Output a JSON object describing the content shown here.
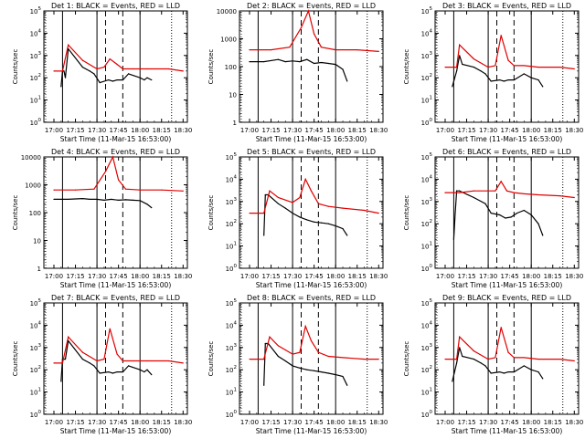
{
  "colors": {
    "events": "#000000",
    "lld": "#e00000",
    "axes": "#000000"
  },
  "chart_data": [
    {
      "type": "line",
      "title": "Det 1: BLACK = Events, RED = LLD",
      "xlabel": "Start Time (11-Mar-15 16:53:00)",
      "ylabel": "Counts/sec",
      "y_tick_labels": [
        "10^0",
        "10^1",
        "10^2",
        "10^3",
        "10^4",
        "10^5"
      ],
      "ylim": [
        1,
        100000
      ],
      "x_tick_labels": [
        "17:00",
        "17:15",
        "17:30",
        "17:45",
        "18:00",
        "18:15",
        "18:30"
      ],
      "series": [
        {
          "name": "Events",
          "x": [
            "17:05",
            "17:06",
            "17:07",
            "17:08",
            "17:10",
            "17:20",
            "17:25",
            "17:28",
            "17:32",
            "17:38",
            "17:41",
            "17:44",
            "17:48",
            "17:52",
            "18:00",
            "18:03",
            "18:05",
            "18:08"
          ],
          "y": [
            40,
            200,
            200,
            100,
            2000,
            300,
            200,
            150,
            60,
            80,
            70,
            80,
            80,
            150,
            100,
            80,
            100,
            80
          ]
        },
        {
          "name": "LLD",
          "x": [
            "17:00",
            "17:06",
            "17:10",
            "17:20",
            "17:30",
            "17:35",
            "17:39",
            "17:44",
            "17:48",
            "17:55",
            "18:05",
            "18:20",
            "18:30"
          ],
          "y": [
            200,
            200,
            3000,
            600,
            250,
            300,
            700,
            400,
            250,
            250,
            250,
            250,
            200
          ]
        }
      ]
    },
    {
      "type": "line",
      "title": "Det 2: BLACK = Events, RED = LLD",
      "xlabel": "Start Time (11-Mar-15 16:53:00)",
      "ylabel": "Counts/sec",
      "y_tick_labels": [
        "1",
        "10",
        "100",
        "1000",
        "10000"
      ],
      "ylim": [
        1,
        10000
      ],
      "x_tick_labels": [
        "17:00",
        "17:15",
        "17:30",
        "17:45",
        "18:00",
        "18:15",
        "18:30"
      ],
      "series": [
        {
          "name": "Events",
          "x": [
            "17:00",
            "17:10",
            "17:20",
            "17:25",
            "17:30",
            "17:35",
            "17:40",
            "17:45",
            "17:50",
            "17:55",
            "18:00",
            "18:05",
            "18:08"
          ],
          "y": [
            150,
            150,
            180,
            150,
            160,
            150,
            180,
            130,
            140,
            130,
            120,
            80,
            30
          ]
        },
        {
          "name": "LLD",
          "x": [
            "17:00",
            "17:15",
            "17:28",
            "17:36",
            "17:41",
            "17:45",
            "17:50",
            "18:00",
            "18:15",
            "18:30"
          ],
          "y": [
            400,
            400,
            500,
            2500,
            10000,
            1500,
            500,
            400,
            400,
            350
          ]
        }
      ]
    },
    {
      "type": "line",
      "title": "Det 3: BLACK = Events, RED = LLD",
      "xlabel": "Start Time (11-Mar-15 16:53:00)",
      "ylabel": "Counts/sec",
      "y_tick_labels": [
        "10^0",
        "10^1",
        "10^2",
        "10^3",
        "10^4",
        "10^5"
      ],
      "ylim": [
        1,
        100000
      ],
      "x_tick_labels": [
        "17:00",
        "17:15",
        "17:30",
        "17:45",
        "18:00",
        "18:15",
        "18:30"
      ],
      "series": [
        {
          "name": "Events",
          "x": [
            "17:05",
            "17:08",
            "17:10",
            "17:12",
            "17:20",
            "17:25",
            "17:28",
            "17:32",
            "17:38",
            "17:41",
            "17:44",
            "17:48",
            "17:55",
            "18:00",
            "18:05",
            "18:08"
          ],
          "y": [
            40,
            200,
            1000,
            400,
            300,
            200,
            150,
            70,
            80,
            70,
            80,
            80,
            150,
            100,
            80,
            40
          ]
        },
        {
          "name": "LLD",
          "x": [
            "17:00",
            "17:08",
            "17:10",
            "17:20",
            "17:30",
            "17:35",
            "17:39",
            "17:44",
            "17:48",
            "17:55",
            "18:05",
            "18:20",
            "18:30"
          ],
          "y": [
            300,
            300,
            3000,
            700,
            300,
            350,
            8000,
            600,
            350,
            350,
            300,
            300,
            250
          ]
        }
      ]
    },
    {
      "type": "line",
      "title": "Det 4: BLACK = Events, RED = LLD",
      "xlabel": "Start Time (11-Mar-15 16:53:00)",
      "ylabel": "Counts/sec",
      "y_tick_labels": [
        "1",
        "10",
        "100",
        "1000",
        "10000"
      ],
      "ylim": [
        1,
        10000
      ],
      "x_tick_labels": [
        "17:00",
        "17:15",
        "17:30",
        "17:45",
        "18:00",
        "18:15",
        "18:30"
      ],
      "series": [
        {
          "name": "Events",
          "x": [
            "17:00",
            "17:10",
            "17:20",
            "17:25",
            "17:30",
            "17:35",
            "17:40",
            "17:45",
            "17:50",
            "17:55",
            "18:00",
            "18:05",
            "18:08"
          ],
          "y": [
            300,
            300,
            320,
            300,
            300,
            280,
            300,
            280,
            290,
            280,
            270,
            200,
            150
          ]
        },
        {
          "name": "LLD",
          "x": [
            "17:00",
            "17:15",
            "17:28",
            "17:36",
            "17:41",
            "17:45",
            "17:50",
            "18:00",
            "18:15",
            "18:30"
          ],
          "y": [
            650,
            650,
            700,
            3000,
            10000,
            1500,
            700,
            650,
            650,
            600
          ]
        }
      ]
    },
    {
      "type": "line",
      "title": "Det 5: BLACK = Events, RED = LLD",
      "xlabel": "Start Time (11-Mar-15 16:53:00)",
      "ylabel": "Counts/sec",
      "y_tick_labels": [
        "10^0",
        "10^1",
        "10^2",
        "10^3",
        "10^4",
        "10^5"
      ],
      "ylim": [
        1,
        100000
      ],
      "x_tick_labels": [
        "17:00",
        "17:15",
        "17:30",
        "17:45",
        "18:00",
        "18:15",
        "18:30"
      ],
      "series": [
        {
          "name": "Events",
          "x": [
            "17:10",
            "17:11",
            "17:13",
            "17:20",
            "17:25",
            "17:30",
            "17:35",
            "17:40",
            "17:45",
            "17:50",
            "17:55",
            "18:00",
            "18:05",
            "18:08"
          ],
          "y": [
            30,
            2000,
            2000,
            800,
            500,
            300,
            200,
            150,
            120,
            110,
            100,
            80,
            60,
            30
          ]
        },
        {
          "name": "LLD",
          "x": [
            "17:00",
            "17:10",
            "17:14",
            "17:20",
            "17:30",
            "17:35",
            "17:39",
            "17:43",
            "17:48",
            "17:55",
            "18:05",
            "18:20",
            "18:30"
          ],
          "y": [
            300,
            300,
            3000,
            1500,
            900,
            1500,
            10000,
            3000,
            800,
            600,
            500,
            400,
            300
          ]
        }
      ]
    },
    {
      "type": "line",
      "title": "Det 6: BLACK = Events, RED = LLD",
      "xlabel": "Start Time (11-Mar-15 16:53:00)",
      "ylabel": "Counts/sec",
      "y_tick_labels": [
        "10^0",
        "10^1",
        "10^2",
        "10^3",
        "10^4",
        "10^5"
      ],
      "ylim": [
        1,
        100000
      ],
      "x_tick_labels": [
        "17:00",
        "17:15",
        "17:30",
        "17:45",
        "18:00",
        "18:15",
        "18:30"
      ],
      "series": [
        {
          "name": "Events",
          "x": [
            "17:06",
            "17:07",
            "17:08",
            "17:10",
            "17:20",
            "17:28",
            "17:32",
            "17:38",
            "17:42",
            "17:46",
            "17:50",
            "17:55",
            "18:00",
            "18:05",
            "18:08"
          ],
          "y": [
            20,
            300,
            3000,
            3000,
            1500,
            800,
            300,
            250,
            180,
            200,
            300,
            400,
            250,
            100,
            30
          ]
        },
        {
          "name": "LLD",
          "x": [
            "17:00",
            "17:10",
            "17:20",
            "17:30",
            "17:35",
            "17:39",
            "17:43",
            "17:48",
            "17:55",
            "18:05",
            "18:20",
            "18:30"
          ],
          "y": [
            2500,
            2500,
            3000,
            3000,
            3000,
            8000,
            3000,
            2500,
            2200,
            2000,
            1800,
            1500
          ]
        }
      ]
    },
    {
      "type": "line",
      "title": "Det 7: BLACK = Events, RED = LLD",
      "xlabel": "Start Time (11-Mar-15 16:53:00)",
      "ylabel": "Counts/sec",
      "y_tick_labels": [
        "10^0",
        "10^1",
        "10^2",
        "10^3",
        "10^4",
        "10^5"
      ],
      "ylim": [
        1,
        100000
      ],
      "x_tick_labels": [
        "17:00",
        "17:15",
        "17:30",
        "17:45",
        "18:00",
        "18:15",
        "18:30"
      ],
      "series": [
        {
          "name": "Events",
          "x": [
            "17:05",
            "17:06",
            "17:08",
            "17:10",
            "17:20",
            "17:25",
            "17:28",
            "17:32",
            "17:38",
            "17:41",
            "17:44",
            "17:48",
            "17:52",
            "18:00",
            "18:03",
            "18:05",
            "18:08"
          ],
          "y": [
            30,
            300,
            300,
            2000,
            300,
            200,
            150,
            70,
            80,
            70,
            80,
            80,
            150,
            100,
            80,
            100,
            60
          ]
        },
        {
          "name": "LLD",
          "x": [
            "17:00",
            "17:06",
            "17:10",
            "17:20",
            "17:30",
            "17:35",
            "17:39",
            "17:44",
            "17:48",
            "17:55",
            "18:05",
            "18:20",
            "18:30"
          ],
          "y": [
            200,
            200,
            3000,
            600,
            250,
            300,
            7000,
            500,
            250,
            250,
            250,
            250,
            200
          ]
        }
      ]
    },
    {
      "type": "line",
      "title": "Det 8: BLACK = Events, RED = LLD",
      "xlabel": "Start Time (11-Mar-15 16:53:00)",
      "ylabel": "Counts/sec",
      "y_tick_labels": [
        "10^0",
        "10^1",
        "10^2",
        "10^3",
        "10^4",
        "10^5"
      ],
      "ylim": [
        1,
        100000
      ],
      "x_tick_labels": [
        "17:00",
        "17:15",
        "17:30",
        "17:45",
        "18:00",
        "18:15",
        "18:30"
      ],
      "series": [
        {
          "name": "Events",
          "x": [
            "17:10",
            "17:11",
            "17:13",
            "17:20",
            "17:25",
            "17:30",
            "17:35",
            "17:40",
            "17:45",
            "17:50",
            "17:55",
            "18:00",
            "18:05",
            "18:08"
          ],
          "y": [
            20,
            1500,
            1500,
            400,
            250,
            150,
            120,
            100,
            90,
            80,
            70,
            60,
            50,
            20
          ]
        },
        {
          "name": "LLD",
          "x": [
            "17:00",
            "17:10",
            "17:14",
            "17:20",
            "17:30",
            "17:35",
            "17:39",
            "17:43",
            "17:48",
            "17:55",
            "18:05",
            "18:20",
            "18:30"
          ],
          "y": [
            300,
            300,
            3000,
            1200,
            500,
            600,
            9000,
            2000,
            600,
            400,
            350,
            300,
            300
          ]
        }
      ]
    },
    {
      "type": "line",
      "title": "Det 9: BLACK = Events, RED = LLD",
      "xlabel": "Start Time (11-Mar-15 16:53:00)",
      "ylabel": "Counts/sec",
      "y_tick_labels": [
        "10^0",
        "10^1",
        "10^2",
        "10^3",
        "10^4",
        "10^5"
      ],
      "ylim": [
        1,
        100000
      ],
      "x_tick_labels": [
        "17:00",
        "17:15",
        "17:30",
        "17:45",
        "18:00",
        "18:15",
        "18:30"
      ],
      "series": [
        {
          "name": "Events",
          "x": [
            "17:05",
            "17:08",
            "17:10",
            "17:12",
            "17:20",
            "17:25",
            "17:28",
            "17:32",
            "17:38",
            "17:41",
            "17:44",
            "17:48",
            "17:55",
            "18:00",
            "18:05",
            "18:08"
          ],
          "y": [
            30,
            200,
            1000,
            400,
            300,
            200,
            150,
            70,
            80,
            70,
            80,
            80,
            150,
            100,
            80,
            40
          ]
        },
        {
          "name": "LLD",
          "x": [
            "17:00",
            "17:08",
            "17:10",
            "17:20",
            "17:30",
            "17:35",
            "17:39",
            "17:44",
            "17:48",
            "17:55",
            "18:05",
            "18:20",
            "18:30"
          ],
          "y": [
            300,
            300,
            3000,
            700,
            300,
            350,
            8000,
            600,
            350,
            350,
            300,
            300,
            250
          ]
        }
      ]
    }
  ]
}
